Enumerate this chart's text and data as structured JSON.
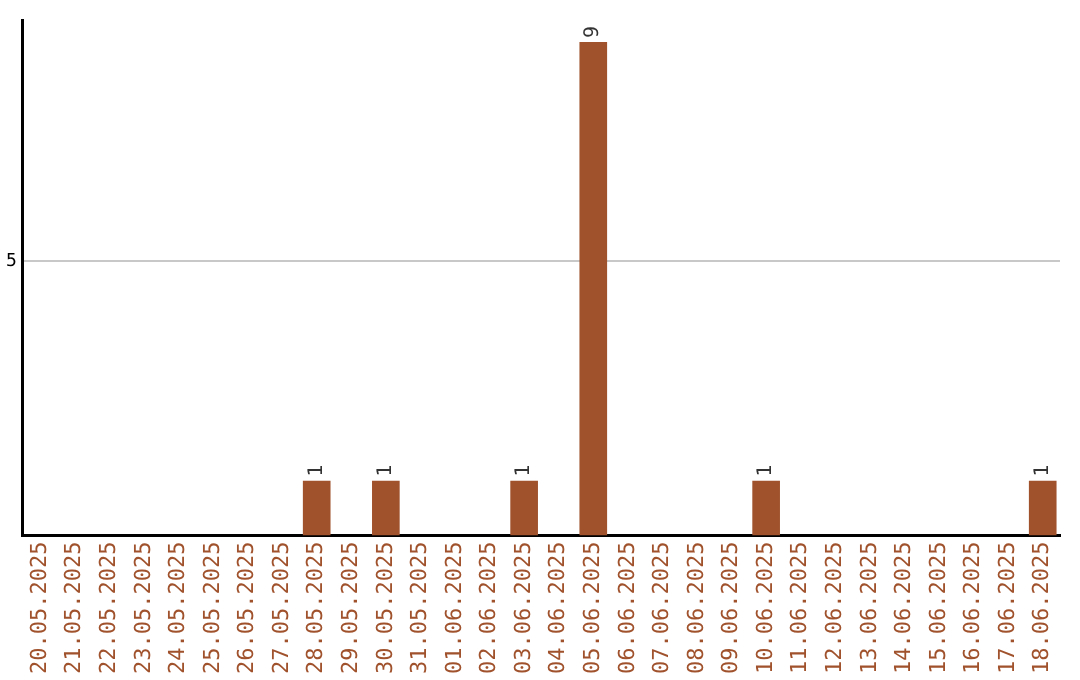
{
  "chart_data": {
    "type": "bar",
    "categories": [
      "20.05.2025",
      "21.05.2025",
      "22.05.2025",
      "23.05.2025",
      "24.05.2025",
      "25.05.2025",
      "26.05.2025",
      "27.05.2025",
      "28.05.2025",
      "29.05.2025",
      "30.05.2025",
      "31.05.2025",
      "01.06.2025",
      "02.06.2025",
      "03.06.2025",
      "04.06.2025",
      "05.06.2025",
      "06.06.2025",
      "07.06.2025",
      "08.06.2025",
      "09.06.2025",
      "10.06.2025",
      "11.06.2025",
      "12.06.2025",
      "13.06.2025",
      "14.06.2025",
      "15.06.2025",
      "16.06.2025",
      "17.06.2025",
      "18.06.2025"
    ],
    "values": [
      0,
      0,
      0,
      0,
      0,
      0,
      0,
      0,
      1,
      0,
      1,
      0,
      0,
      0,
      1,
      0,
      9,
      0,
      0,
      0,
      0,
      1,
      0,
      0,
      0,
      0,
      0,
      0,
      0,
      1
    ],
    "value_labels": [
      null,
      null,
      null,
      null,
      null,
      null,
      null,
      null,
      "1",
      null,
      "1",
      null,
      null,
      null,
      "1",
      null,
      "9",
      null,
      null,
      null,
      null,
      "1",
      null,
      null,
      null,
      null,
      null,
      null,
      null,
      "1"
    ],
    "color": "#a0522d",
    "ylim": [
      0,
      9.4
    ],
    "yticks": [
      5
    ],
    "grid": "y",
    "legend": false
  }
}
